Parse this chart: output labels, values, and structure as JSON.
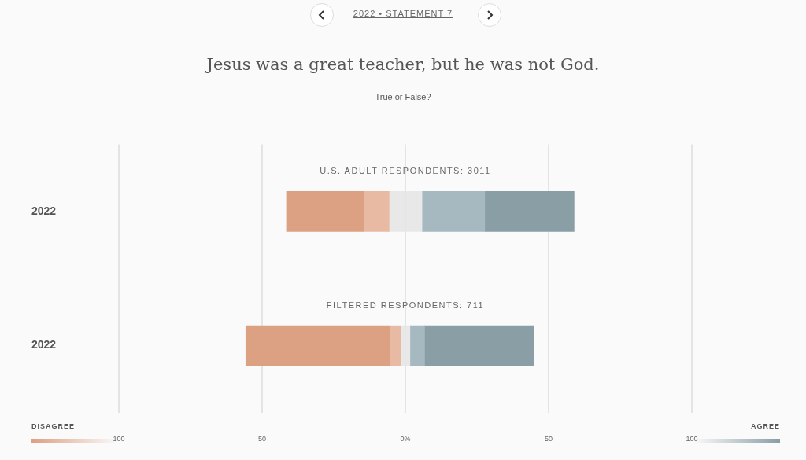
{
  "chart_data": {
    "type": "bar",
    "orientation": "horizontal",
    "stacked": true,
    "title": "Jesus was a great teacher, but he was not God.",
    "subtitle": "True or False?",
    "categories": [
      "2022",
      "2022"
    ],
    "series": [
      {
        "color": "#e8e8e8",
        "values": [
          -5.5,
          -1.4
        ]
      },
      {
        "color": "#e8b9a3",
        "values": [
          -8.9,
          -3.9
        ]
      },
      {
        "color": "#dca083",
        "values": [
          -27.1,
          -50.4
        ]
      },
      {
        "color": "#e8e8e8",
        "values": [
          5.8,
          1.6
        ]
      },
      {
        "color": "#a6b9c1",
        "values": [
          21.9,
          5.1
        ]
      },
      {
        "color": "#8a9ea5",
        "values": [
          31.2,
          38.1
        ]
      }
    ],
    "xlim": [
      -100,
      100
    ],
    "xticks": [
      {
        "value": -100,
        "label": "100"
      },
      {
        "value": -50,
        "label": "50"
      },
      {
        "value": 0,
        "label": "0%"
      },
      {
        "value": 50,
        "label": "50"
      },
      {
        "value": 100,
        "label": "100"
      }
    ],
    "grid": "x",
    "legend": false,
    "annotations": [
      "U.S. ADULT RESPONDENTS: 3011",
      "FILTERED RESPONDENTS: 711",
      "2022 • STATEMENT 7",
      "DISAGREE",
      "AGREE"
    ]
  }
}
